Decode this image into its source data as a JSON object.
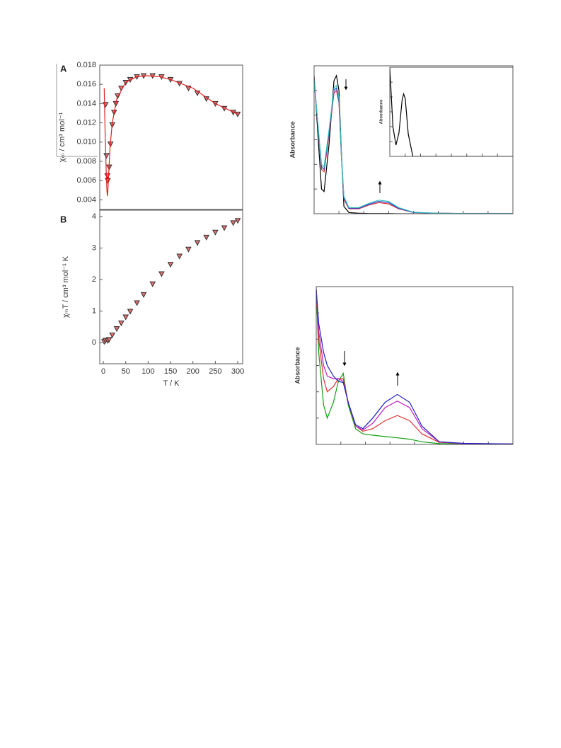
{
  "chart_data": [
    {
      "type": "scatter",
      "panel": "A",
      "ylabel": "χₘ / cm³ mol⁻¹",
      "xlim": [
        -8,
        311
      ],
      "ylim": [
        0.003,
        0.018
      ],
      "yticks": [
        0.004,
        0.006,
        0.008,
        {
          "value": 0.01,
          "label": "0.010"
        },
        0.012,
        0.014,
        0.016,
        0.018
      ],
      "series": [
        {
          "mode": "markers",
          "color": "#e07070",
          "x": [
            5,
            7,
            9,
            10,
            13,
            16,
            20,
            24,
            28,
            32,
            40,
            50,
            60,
            75,
            90,
            110,
            130,
            150,
            170,
            190,
            210,
            230,
            250,
            270,
            290,
            300
          ],
          "values": [
            0.0139,
            0.0086,
            0.0065,
            0.006,
            0.0074,
            0.0098,
            0.0118,
            0.0131,
            0.014,
            0.0148,
            0.0156,
            0.0162,
            0.0165,
            0.0168,
            0.0169,
            0.0169,
            0.0168,
            0.0165,
            0.0161,
            0.0156,
            0.0151,
            0.0145,
            0.014,
            0.0135,
            0.0131,
            0.0129
          ]
        },
        {
          "mode": "lines",
          "color": "#e02020",
          "x": [
            2,
            4,
            6,
            8,
            9,
            10,
            12,
            15,
            20,
            30,
            50,
            75,
            100,
            125,
            150,
            200,
            250,
            300
          ],
          "values": [
            0.0156,
            0.011,
            0.0075,
            0.005,
            0.0044,
            0.0048,
            0.0068,
            0.0095,
            0.012,
            0.0145,
            0.0162,
            0.0168,
            0.0169,
            0.0168,
            0.0165,
            0.0156,
            0.014,
            0.0129
          ]
        }
      ]
    },
    {
      "type": "scatter",
      "panel": "B",
      "ylabel": "χₘT / cm³ mol⁻¹ K",
      "xlabel": "T / K",
      "xlim": [
        -8,
        311
      ],
      "ylim": [
        -0.67,
        4.2
      ],
      "xticks": [
        0,
        50,
        100,
        150,
        200,
        250,
        300
      ],
      "yticks": [
        0,
        1,
        2,
        3,
        4
      ],
      "series": [
        {
          "mode": "markers",
          "color": "#e07070",
          "x": [
            2,
            5,
            10,
            13,
            20,
            30,
            40,
            50,
            60,
            75,
            90,
            110,
            130,
            150,
            170,
            190,
            210,
            230,
            250,
            270,
            290,
            300
          ],
          "values": [
            0.03,
            0.07,
            0.06,
            0.1,
            0.24,
            0.44,
            0.62,
            0.81,
            0.99,
            1.26,
            1.52,
            1.86,
            2.18,
            2.48,
            2.74,
            2.96,
            3.17,
            3.34,
            3.5,
            3.64,
            3.8,
            3.87
          ]
        }
      ]
    },
    {
      "type": "line",
      "ylabel": "Absorbance",
      "tick_labels": false,
      "xlim": [
        0,
        8
      ],
      "ylim": [
        0,
        6
      ],
      "xticks": [
        0,
        1,
        2,
        3,
        4,
        5,
        6,
        7,
        8
      ],
      "yticks": [
        0,
        1,
        2,
        3,
        4,
        5,
        6
      ],
      "series": [
        {
          "mode": "lines",
          "color": "#000000",
          "x": [
            0,
            0.2,
            0.3,
            0.4,
            0.6,
            0.8,
            0.9,
            1.0,
            1.1,
            1.2,
            1.4,
            1.8,
            2.2,
            2.6,
            3.0,
            3.4,
            4,
            5,
            6,
            8
          ],
          "values": [
            5.6,
            2.5,
            1.0,
            0.9,
            2.8,
            5.4,
            5.6,
            5.0,
            2.5,
            0.3,
            0.05,
            0.02,
            0.01,
            0.01,
            0.01,
            0,
            0,
            0,
            0,
            0
          ]
        },
        {
          "mode": "lines",
          "color": "#e03030",
          "x": [
            0,
            0.2,
            0.3,
            0.4,
            0.6,
            0.8,
            0.9,
            1.0,
            1.1,
            1.2,
            1.4,
            1.8,
            2.2,
            2.6,
            3.0,
            3.4,
            4,
            5,
            6,
            8
          ],
          "values": [
            5.5,
            3.0,
            1.8,
            1.7,
            3.2,
            4.9,
            5.0,
            4.5,
            2.3,
            0.6,
            0.2,
            0.2,
            0.35,
            0.45,
            0.4,
            0.2,
            0.05,
            0.02,
            0.01,
            0.01
          ]
        },
        {
          "mode": "lines",
          "color": "#3040d0",
          "x": [
            0,
            0.2,
            0.3,
            0.4,
            0.6,
            0.8,
            0.9,
            1.0,
            1.1,
            1.2,
            1.4,
            1.8,
            2.2,
            2.6,
            3.0,
            3.4,
            4,
            5,
            6,
            8
          ],
          "values": [
            5.45,
            3.05,
            1.9,
            1.8,
            3.3,
            5.0,
            5.1,
            4.6,
            2.35,
            0.65,
            0.22,
            0.22,
            0.38,
            0.5,
            0.45,
            0.22,
            0.05,
            0.02,
            0.01,
            0.01
          ]
        },
        {
          "mode": "lines",
          "color": "#30c0c0",
          "x": [
            0,
            0.2,
            0.3,
            0.4,
            0.6,
            0.8,
            0.9,
            1.0,
            1.1,
            1.2,
            1.4,
            1.8,
            2.2,
            2.6,
            3.0,
            3.4,
            4,
            5,
            6,
            8
          ],
          "values": [
            5.4,
            3.1,
            2.0,
            1.9,
            3.4,
            5.1,
            5.2,
            4.7,
            2.4,
            0.7,
            0.25,
            0.25,
            0.42,
            0.55,
            0.5,
            0.25,
            0.06,
            0.02,
            0.01,
            0.01
          ]
        }
      ]
    },
    {
      "type": "line",
      "ylabel": "Absorbance",
      "tick_labels": false,
      "inset": true,
      "xlim": [
        0,
        8
      ],
      "ylim": [
        0,
        6
      ],
      "xticks": [
        0,
        1,
        2,
        3,
        4,
        5,
        6,
        7,
        8
      ],
      "yticks": [
        0,
        1,
        2,
        3,
        4,
        5,
        6
      ],
      "series": [
        {
          "mode": "lines",
          "color": "#000000",
          "x": [
            0,
            0.2,
            0.4,
            0.6,
            0.8,
            0.9,
            1.0,
            1.2,
            1.5,
            2,
            4,
            8
          ],
          "values": [
            6,
            2.0,
            0.76,
            1.6,
            3.8,
            4.2,
            3.9,
            1.5,
            0,
            0,
            0,
            0
          ]
        }
      ]
    },
    {
      "type": "line",
      "ylabel": "Absorbance",
      "tick_labels": false,
      "xlim": [
        0,
        8
      ],
      "ylim": [
        0,
        6
      ],
      "xticks": [
        0,
        1,
        2,
        3,
        4,
        5,
        6,
        7,
        8
      ],
      "yticks": [
        0,
        1,
        2,
        3,
        4,
        5,
        6
      ],
      "series": [
        {
          "mode": "lines",
          "color": "#10a010",
          "x": [
            0,
            0.1,
            0.3,
            0.45,
            0.7,
            0.9,
            1.1,
            1.3,
            1.6,
            1.9,
            2.3,
            2.8,
            3.3,
            3.8,
            4.3,
            5,
            6,
            8
          ],
          "values": [
            5.9,
            3.5,
            1.5,
            1.0,
            1.6,
            2.4,
            2.7,
            1.5,
            0.6,
            0.4,
            0.35,
            0.3,
            0.25,
            0.2,
            0.1,
            0.03,
            0.02,
            0.02
          ]
        },
        {
          "mode": "lines",
          "color": "#e03030",
          "x": [
            0,
            0.1,
            0.3,
            0.45,
            0.7,
            0.9,
            1.1,
            1.3,
            1.6,
            1.9,
            2.3,
            2.8,
            3.3,
            3.8,
            4.3,
            5,
            6,
            8
          ],
          "values": [
            5.9,
            4.0,
            2.5,
            2.0,
            2.2,
            2.5,
            2.5,
            1.6,
            0.7,
            0.5,
            0.6,
            0.9,
            1.1,
            0.9,
            0.4,
            0.08,
            0.03,
            0.02
          ]
        },
        {
          "mode": "lines",
          "color": "#c020c0",
          "x": [
            0,
            0.1,
            0.3,
            0.45,
            0.7,
            0.9,
            1.1,
            1.3,
            1.6,
            1.9,
            2.3,
            2.8,
            3.3,
            3.8,
            4.3,
            5,
            6,
            8
          ],
          "values": [
            5.9,
            4.3,
            3.0,
            2.6,
            2.5,
            2.5,
            2.4,
            1.6,
            0.7,
            0.55,
            0.8,
            1.4,
            1.65,
            1.4,
            0.6,
            0.1,
            0.03,
            0.02
          ]
        },
        {
          "mode": "lines",
          "color": "#2020c0",
          "x": [
            0,
            0.1,
            0.3,
            0.45,
            0.7,
            0.9,
            1.1,
            1.3,
            1.6,
            1.9,
            2.3,
            2.8,
            3.3,
            3.8,
            4.3,
            5,
            6,
            8
          ],
          "values": [
            5.9,
            4.6,
            3.5,
            3.0,
            2.6,
            2.4,
            2.35,
            1.6,
            0.75,
            0.6,
            1.0,
            1.6,
            1.9,
            1.6,
            0.7,
            0.1,
            0.04,
            0.02
          ]
        }
      ]
    }
  ]
}
